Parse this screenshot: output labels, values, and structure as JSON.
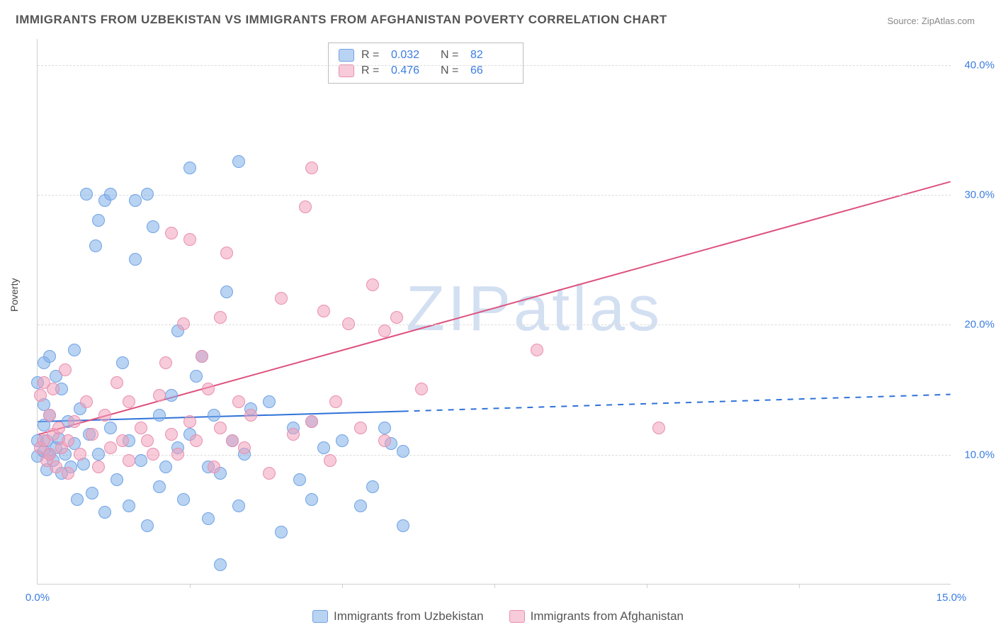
{
  "title": "IMMIGRANTS FROM UZBEKISTAN VS IMMIGRANTS FROM AFGHANISTAN POVERTY CORRELATION CHART",
  "source": "Source: ZipAtlas.com",
  "watermark": "ZIPatlas",
  "chart": {
    "type": "scatter-with-regression",
    "ylabel": "Poverty",
    "xlim": [
      0,
      15
    ],
    "ylim": [
      0,
      42
    ],
    "x_ticks": [
      0,
      15
    ],
    "x_tick_labels": [
      "0.0%",
      "15.0%"
    ],
    "x_minor_ticks": [
      2.5,
      5,
      7.5,
      10,
      12.5
    ],
    "y_gridlines": [
      10,
      20,
      30,
      40
    ],
    "y_tick_labels": [
      "10.0%",
      "20.0%",
      "30.0%",
      "40.0%"
    ],
    "background_color": "#ffffff",
    "grid_color": "#dcdcdc",
    "axis_color": "#cfcfcf",
    "tick_label_color": "#3b7de0",
    "point_radius": 9
  },
  "series": [
    {
      "name": "Immigrants from Uzbekistan",
      "fill_color": "rgba(128,174,232,0.55)",
      "stroke_color": "#6fa3e6",
      "line_color": "#2f72d9",
      "R": "0.032",
      "N": "82",
      "regression": {
        "x1": 0,
        "y1": 12.5,
        "x2": 6,
        "y2": 13.3,
        "x2_dash": 15,
        "y2_dash": 14.6,
        "width": 2
      },
      "points": [
        [
          0.0,
          15.5
        ],
        [
          0.0,
          9.8
        ],
        [
          0.0,
          11.0
        ],
        [
          0.1,
          13.8
        ],
        [
          0.1,
          10.2
        ],
        [
          0.1,
          17.0
        ],
        [
          0.1,
          12.2
        ],
        [
          0.15,
          11.0
        ],
        [
          0.15,
          8.8
        ],
        [
          0.2,
          17.5
        ],
        [
          0.2,
          10.0
        ],
        [
          0.2,
          13.0
        ],
        [
          0.25,
          9.5
        ],
        [
          0.3,
          16.0
        ],
        [
          0.3,
          10.5
        ],
        [
          0.35,
          11.2
        ],
        [
          0.4,
          15.0
        ],
        [
          0.4,
          8.5
        ],
        [
          0.45,
          10.0
        ],
        [
          0.5,
          12.5
        ],
        [
          0.55,
          9.0
        ],
        [
          0.6,
          18.0
        ],
        [
          0.6,
          10.8
        ],
        [
          0.65,
          6.5
        ],
        [
          0.7,
          13.5
        ],
        [
          0.75,
          9.2
        ],
        [
          0.8,
          30.0
        ],
        [
          0.85,
          11.5
        ],
        [
          0.9,
          7.0
        ],
        [
          0.95,
          26.0
        ],
        [
          1.0,
          28.0
        ],
        [
          1.0,
          10.0
        ],
        [
          1.1,
          29.5
        ],
        [
          1.1,
          5.5
        ],
        [
          1.2,
          12.0
        ],
        [
          1.2,
          30.0
        ],
        [
          1.3,
          8.0
        ],
        [
          1.4,
          17.0
        ],
        [
          1.5,
          11.0
        ],
        [
          1.5,
          6.0
        ],
        [
          1.6,
          25.0
        ],
        [
          1.6,
          29.5
        ],
        [
          1.7,
          9.5
        ],
        [
          1.8,
          30.0
        ],
        [
          1.8,
          4.5
        ],
        [
          1.9,
          27.5
        ],
        [
          2.0,
          13.0
        ],
        [
          2.0,
          7.5
        ],
        [
          2.1,
          9.0
        ],
        [
          2.2,
          14.5
        ],
        [
          2.3,
          19.5
        ],
        [
          2.3,
          10.5
        ],
        [
          2.4,
          6.5
        ],
        [
          2.5,
          11.5
        ],
        [
          2.5,
          32.0
        ],
        [
          2.6,
          16.0
        ],
        [
          2.7,
          17.5
        ],
        [
          2.8,
          5.0
        ],
        [
          2.8,
          9.0
        ],
        [
          2.9,
          13.0
        ],
        [
          3.0,
          1.5
        ],
        [
          3.0,
          8.5
        ],
        [
          3.1,
          22.5
        ],
        [
          3.2,
          11.0
        ],
        [
          3.3,
          32.5
        ],
        [
          3.3,
          6.0
        ],
        [
          3.4,
          10.0
        ],
        [
          3.5,
          13.5
        ],
        [
          3.8,
          14.0
        ],
        [
          4.0,
          4.0
        ],
        [
          4.2,
          12.0
        ],
        [
          4.3,
          8.0
        ],
        [
          4.5,
          12.5
        ],
        [
          4.5,
          6.5
        ],
        [
          4.7,
          10.5
        ],
        [
          5.0,
          11.0
        ],
        [
          5.3,
          6.0
        ],
        [
          5.5,
          7.5
        ],
        [
          5.7,
          12.0
        ],
        [
          6.0,
          4.5
        ],
        [
          6.0,
          10.2
        ],
        [
          5.8,
          10.8
        ]
      ]
    },
    {
      "name": "Immigrants from Afghanistan",
      "fill_color": "rgba(240,160,185,0.55)",
      "stroke_color": "#e98fb0",
      "line_color": "#dd517d",
      "R": "0.476",
      "N": "66",
      "regression": {
        "x1": 0,
        "y1": 11.5,
        "x2": 15,
        "y2": 31.0,
        "width": 2
      },
      "points": [
        [
          0.05,
          14.5
        ],
        [
          0.05,
          10.5
        ],
        [
          0.1,
          15.5
        ],
        [
          0.1,
          11.0
        ],
        [
          0.15,
          9.5
        ],
        [
          0.2,
          13.0
        ],
        [
          0.2,
          10.0
        ],
        [
          0.25,
          15.0
        ],
        [
          0.25,
          11.5
        ],
        [
          0.3,
          9.0
        ],
        [
          0.35,
          12.0
        ],
        [
          0.4,
          10.5
        ],
        [
          0.45,
          16.5
        ],
        [
          0.5,
          11.0
        ],
        [
          0.5,
          8.5
        ],
        [
          0.6,
          12.5
        ],
        [
          0.7,
          10.0
        ],
        [
          0.8,
          14.0
        ],
        [
          0.9,
          11.5
        ],
        [
          1.0,
          9.0
        ],
        [
          1.1,
          13.0
        ],
        [
          1.2,
          10.5
        ],
        [
          1.3,
          15.5
        ],
        [
          1.4,
          11.0
        ],
        [
          1.5,
          14.0
        ],
        [
          1.5,
          9.5
        ],
        [
          1.7,
          12.0
        ],
        [
          1.8,
          11.0
        ],
        [
          1.9,
          10.0
        ],
        [
          2.0,
          14.5
        ],
        [
          2.1,
          17.0
        ],
        [
          2.2,
          11.5
        ],
        [
          2.2,
          27.0
        ],
        [
          2.3,
          10.0
        ],
        [
          2.4,
          20.0
        ],
        [
          2.5,
          26.5
        ],
        [
          2.5,
          12.5
        ],
        [
          2.6,
          11.0
        ],
        [
          2.7,
          17.5
        ],
        [
          2.8,
          15.0
        ],
        [
          2.9,
          9.0
        ],
        [
          3.0,
          20.5
        ],
        [
          3.0,
          12.0
        ],
        [
          3.1,
          25.5
        ],
        [
          3.2,
          11.0
        ],
        [
          3.3,
          14.0
        ],
        [
          3.4,
          10.5
        ],
        [
          3.5,
          13.0
        ],
        [
          3.8,
          8.5
        ],
        [
          4.0,
          22.0
        ],
        [
          4.2,
          11.5
        ],
        [
          4.4,
          29.0
        ],
        [
          4.5,
          12.5
        ],
        [
          4.5,
          32.0
        ],
        [
          4.7,
          21.0
        ],
        [
          4.9,
          14.0
        ],
        [
          5.1,
          20.0
        ],
        [
          5.3,
          12.0
        ],
        [
          5.5,
          23.0
        ],
        [
          5.7,
          11.0
        ],
        [
          5.7,
          19.5
        ],
        [
          5.9,
          20.5
        ],
        [
          6.3,
          15.0
        ],
        [
          8.2,
          18.0
        ],
        [
          10.2,
          12.0
        ],
        [
          4.8,
          9.5
        ]
      ]
    }
  ],
  "legend_top": {
    "labels": {
      "R": "R =",
      "N": "N ="
    }
  }
}
